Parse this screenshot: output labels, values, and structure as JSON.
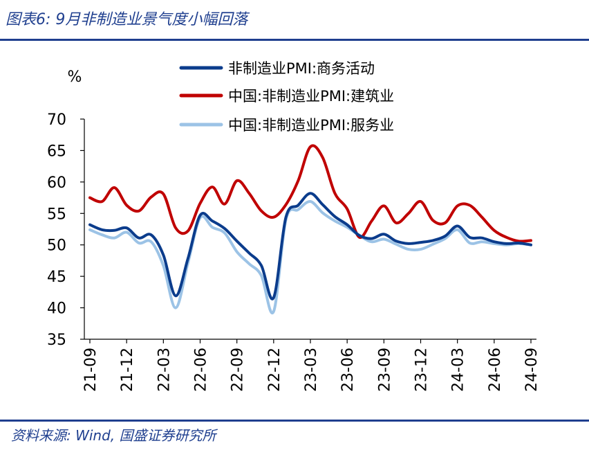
{
  "header": {
    "title": "图表6:  9月非制造业景气度小幅回落"
  },
  "footer": {
    "source": "资料来源: Wind, 国盛证券研究所"
  },
  "chart_data": {
    "type": "line",
    "ylabel": "%",
    "ylim": [
      35,
      70
    ],
    "yticks": [
      35,
      40,
      45,
      50,
      55,
      60,
      65,
      70
    ],
    "x": [
      "21-09",
      "21-10",
      "21-11",
      "21-12",
      "22-01",
      "22-02",
      "22-03",
      "22-04",
      "22-05",
      "22-06",
      "22-07",
      "22-08",
      "22-09",
      "22-10",
      "22-11",
      "22-12",
      "23-01",
      "23-02",
      "23-03",
      "23-04",
      "23-05",
      "23-06",
      "23-07",
      "23-08",
      "23-09",
      "23-10",
      "23-11",
      "23-12",
      "24-01",
      "24-02",
      "24-03",
      "24-04",
      "24-05",
      "24-06",
      "24-07",
      "24-08",
      "24-09"
    ],
    "xtick_labels": [
      "21-09",
      "21-12",
      "22-03",
      "22-06",
      "22-09",
      "22-12",
      "23-03",
      "23-06",
      "23-09",
      "23-12",
      "24-03",
      "24-06",
      "24-09"
    ],
    "legend_position": "top",
    "series": [
      {
        "name": "非制造业PMI:商务活动",
        "color": "#0b3c8c",
        "values": [
          53.2,
          52.4,
          52.3,
          52.7,
          51.1,
          51.6,
          48.4,
          41.9,
          47.8,
          54.7,
          53.8,
          52.6,
          50.6,
          48.7,
          46.7,
          41.6,
          54.4,
          56.3,
          58.2,
          56.4,
          54.5,
          53.2,
          51.5,
          51.0,
          51.7,
          50.6,
          50.2,
          50.4,
          50.7,
          51.4,
          53.0,
          51.2,
          51.1,
          50.5,
          50.2,
          50.3,
          50.0
        ]
      },
      {
        "name": "中国:非制造业PMI:建筑业",
        "color": "#c00000",
        "values": [
          57.5,
          56.9,
          59.1,
          56.3,
          55.4,
          57.6,
          58.1,
          52.7,
          52.2,
          56.6,
          59.2,
          56.5,
          60.2,
          58.2,
          55.4,
          54.4,
          56.4,
          60.2,
          65.6,
          63.9,
          58.2,
          55.7,
          51.2,
          53.8,
          56.2,
          53.5,
          55.0,
          56.9,
          53.9,
          53.5,
          56.2,
          56.3,
          54.4,
          52.3,
          51.2,
          50.6,
          50.7
        ]
      },
      {
        "name": "中国:非制造业PMI:服务业",
        "color": "#9cc3e6",
        "values": [
          52.4,
          51.6,
          51.1,
          52.0,
          50.3,
          50.5,
          46.7,
          40.0,
          47.1,
          54.3,
          52.8,
          51.9,
          48.9,
          47.0,
          45.1,
          39.4,
          54.0,
          55.6,
          56.9,
          55.1,
          53.8,
          52.8,
          51.5,
          50.5,
          50.9,
          50.1,
          49.3,
          49.3,
          50.1,
          51.0,
          52.4,
          50.3,
          50.5,
          50.2,
          50.0,
          50.2,
          50.0
        ]
      }
    ]
  }
}
